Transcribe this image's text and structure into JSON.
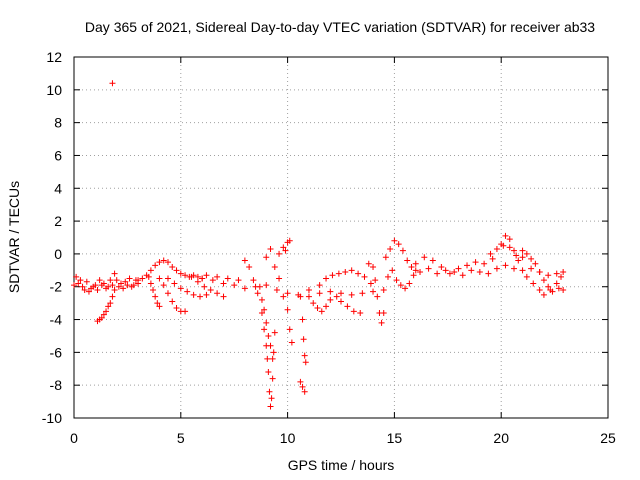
{
  "chart_data": {
    "type": "scatter",
    "title": "Day 365 of 2021, Sidereal Day-to-day VTEC variation (SDTVAR) for receiver ab33",
    "xlabel": "GPS time / hours",
    "ylabel": "SDTVAR / TECUs",
    "xlim": [
      0,
      25
    ],
    "ylim": [
      -10,
      12
    ],
    "xticks": [
      0,
      5,
      10,
      15,
      20,
      25
    ],
    "yticks": [
      -10,
      -8,
      -6,
      -4,
      -2,
      0,
      2,
      4,
      6,
      8,
      10,
      12
    ],
    "grid": true,
    "marker": "+",
    "color": "#ff0000",
    "series": [
      {
        "name": "SDTVAR",
        "points": [
          [
            1.8,
            10.4
          ],
          [
            0.0,
            -1.9
          ],
          [
            0.2,
            -1.8
          ],
          [
            0.4,
            -2.0
          ],
          [
            0.6,
            -1.7
          ],
          [
            0.8,
            -2.1
          ],
          [
            1.0,
            -1.9
          ],
          [
            1.2,
            -1.6
          ],
          [
            1.4,
            -1.8
          ],
          [
            1.6,
            -2.0
          ],
          [
            1.8,
            -1.9
          ],
          [
            2.0,
            -1.6
          ],
          [
            2.2,
            -1.8
          ],
          [
            2.4,
            -1.7
          ],
          [
            2.6,
            -1.5
          ],
          [
            2.8,
            -1.9
          ],
          [
            3.0,
            -1.8
          ],
          [
            0.1,
            -1.4
          ],
          [
            0.3,
            -1.6
          ],
          [
            0.5,
            -2.2
          ],
          [
            0.7,
            -2.3
          ],
          [
            0.9,
            -2.0
          ],
          [
            1.1,
            -2.2
          ],
          [
            1.3,
            -1.9
          ],
          [
            1.5,
            -2.1
          ],
          [
            1.7,
            -1.6
          ],
          [
            1.9,
            -1.2
          ],
          [
            2.1,
            -2.0
          ],
          [
            2.3,
            -2.1
          ],
          [
            2.5,
            -1.9
          ],
          [
            2.7,
            -2.0
          ],
          [
            2.9,
            -1.6
          ],
          [
            1.1,
            -4.1
          ],
          [
            1.2,
            -4.0
          ],
          [
            1.3,
            -3.9
          ],
          [
            1.4,
            -3.7
          ],
          [
            1.5,
            -3.5
          ],
          [
            1.6,
            -3.2
          ],
          [
            1.7,
            -3.0
          ],
          [
            1.8,
            -2.6
          ],
          [
            1.9,
            -2.2
          ],
          [
            3.0,
            -1.6
          ],
          [
            3.2,
            -1.5
          ],
          [
            3.4,
            -1.3
          ],
          [
            3.6,
            -1.0
          ],
          [
            3.8,
            -0.7
          ],
          [
            4.0,
            -0.5
          ],
          [
            4.2,
            -0.4
          ],
          [
            4.4,
            -0.5
          ],
          [
            4.6,
            -0.8
          ],
          [
            4.8,
            -1.0
          ],
          [
            5.0,
            -1.2
          ],
          [
            5.2,
            -1.3
          ],
          [
            5.4,
            -1.4
          ],
          [
            5.6,
            -1.3
          ],
          [
            5.8,
            -1.4
          ],
          [
            6.0,
            -1.5
          ],
          [
            3.5,
            -1.4
          ],
          [
            3.6,
            -1.8
          ],
          [
            3.7,
            -2.2
          ],
          [
            3.8,
            -2.6
          ],
          [
            3.9,
            -3.0
          ],
          [
            4.0,
            -3.2
          ],
          [
            4.0,
            -1.5
          ],
          [
            4.2,
            -1.9
          ],
          [
            4.4,
            -2.4
          ],
          [
            4.6,
            -2.9
          ],
          [
            4.8,
            -3.3
          ],
          [
            5.0,
            -3.5
          ],
          [
            5.2,
            -3.5
          ],
          [
            4.4,
            -1.5
          ],
          [
            4.7,
            -1.8
          ],
          [
            5.0,
            -2.1
          ],
          [
            5.3,
            -2.3
          ],
          [
            5.6,
            -2.5
          ],
          [
            5.9,
            -2.6
          ],
          [
            6.2,
            -2.5
          ],
          [
            5.5,
            -1.4
          ],
          [
            5.8,
            -1.7
          ],
          [
            6.1,
            -2.0
          ],
          [
            6.4,
            -2.2
          ],
          [
            6.7,
            -2.4
          ],
          [
            7.0,
            -2.6
          ],
          [
            6.0,
            -1.5
          ],
          [
            6.5,
            -1.6
          ],
          [
            7.0,
            -1.8
          ],
          [
            7.5,
            -1.9
          ],
          [
            8.0,
            -2.1
          ],
          [
            8.5,
            -2.0
          ],
          [
            9.0,
            -1.9
          ],
          [
            9.5,
            -2.2
          ],
          [
            10.0,
            -2.4
          ],
          [
            10.5,
            -2.5
          ],
          [
            11.0,
            -2.6
          ],
          [
            11.5,
            -2.4
          ],
          [
            12.0,
            -2.3
          ],
          [
            12.5,
            -2.4
          ],
          [
            13.0,
            -2.5
          ],
          [
            13.5,
            -2.4
          ],
          [
            14.0,
            -2.3
          ],
          [
            14.5,
            -2.2
          ],
          [
            6.2,
            -1.3
          ],
          [
            6.7,
            -1.4
          ],
          [
            7.2,
            -1.5
          ],
          [
            7.7,
            -1.6
          ],
          [
            8.0,
            -0.4
          ],
          [
            8.2,
            -0.8
          ],
          [
            8.4,
            -1.6
          ],
          [
            8.6,
            -2.4
          ],
          [
            8.8,
            -3.6
          ],
          [
            8.9,
            -4.6
          ],
          [
            9.0,
            -5.6
          ],
          [
            9.05,
            -6.4
          ],
          [
            9.1,
            -7.2
          ],
          [
            9.15,
            -8.4
          ],
          [
            9.2,
            -9.3
          ],
          [
            9.25,
            -8.8
          ],
          [
            9.3,
            -7.6
          ],
          [
            9.35,
            -6.0
          ],
          [
            9.4,
            -4.8
          ],
          [
            8.7,
            -2.0
          ],
          [
            8.8,
            -2.8
          ],
          [
            8.9,
            -3.4
          ],
          [
            9.0,
            -4.2
          ],
          [
            9.1,
            -5.0
          ],
          [
            9.2,
            -5.6
          ],
          [
            9.3,
            -6.4
          ],
          [
            9.0,
            -0.2
          ],
          [
            9.2,
            0.3
          ],
          [
            9.4,
            -0.8
          ],
          [
            9.6,
            -1.5
          ],
          [
            9.8,
            -2.6
          ],
          [
            10.0,
            -3.4
          ],
          [
            10.1,
            -4.6
          ],
          [
            10.2,
            -5.4
          ],
          [
            9.6,
            0.0
          ],
          [
            9.8,
            0.4
          ],
          [
            10.0,
            0.7
          ],
          [
            10.1,
            0.8
          ],
          [
            9.9,
            0.2
          ],
          [
            10.6,
            -2.6
          ],
          [
            10.7,
            -4.0
          ],
          [
            10.75,
            -5.2
          ],
          [
            10.8,
            -6.2
          ],
          [
            10.85,
            -6.6
          ],
          [
            10.6,
            -7.8
          ],
          [
            10.7,
            -8.1
          ],
          [
            10.8,
            -8.4
          ],
          [
            11.0,
            -2.2
          ],
          [
            11.2,
            -3.0
          ],
          [
            11.4,
            -3.3
          ],
          [
            11.6,
            -3.5
          ],
          [
            11.8,
            -3.2
          ],
          [
            12.0,
            -2.8
          ],
          [
            12.3,
            -2.6
          ],
          [
            11.5,
            -1.9
          ],
          [
            11.8,
            -1.5
          ],
          [
            12.1,
            -1.3
          ],
          [
            12.4,
            -1.2
          ],
          [
            12.7,
            -1.1
          ],
          [
            13.0,
            -1.0
          ],
          [
            13.3,
            -1.2
          ],
          [
            13.6,
            -1.4
          ],
          [
            13.9,
            -1.8
          ],
          [
            12.5,
            -2.9
          ],
          [
            12.8,
            -3.2
          ],
          [
            13.1,
            -3.5
          ],
          [
            13.4,
            -3.6
          ],
          [
            13.8,
            -0.6
          ],
          [
            14.0,
            -0.8
          ],
          [
            14.1,
            -1.6
          ],
          [
            14.2,
            -2.6
          ],
          [
            14.3,
            -3.6
          ],
          [
            14.4,
            -4.2
          ],
          [
            14.5,
            -3.6
          ],
          [
            14.6,
            -0.2
          ],
          [
            14.8,
            0.3
          ],
          [
            15.0,
            0.8
          ],
          [
            15.2,
            0.6
          ],
          [
            15.4,
            0.2
          ],
          [
            15.6,
            -0.4
          ],
          [
            15.8,
            -0.8
          ],
          [
            16.0,
            -1.0
          ],
          [
            14.7,
            -1.4
          ],
          [
            14.9,
            -1.0
          ],
          [
            15.1,
            -1.6
          ],
          [
            15.3,
            -1.9
          ],
          [
            15.5,
            -2.1
          ],
          [
            15.7,
            -1.8
          ],
          [
            15.9,
            -1.3
          ],
          [
            16.0,
            -0.6
          ],
          [
            16.4,
            -0.2
          ],
          [
            16.8,
            -0.4
          ],
          [
            17.2,
            -0.8
          ],
          [
            17.6,
            -1.2
          ],
          [
            18.0,
            -0.9
          ],
          [
            18.4,
            -0.7
          ],
          [
            18.8,
            -0.5
          ],
          [
            19.2,
            -0.6
          ],
          [
            19.6,
            -0.3
          ],
          [
            20.0,
            0.6
          ],
          [
            20.2,
            1.1
          ],
          [
            20.4,
            0.9
          ],
          [
            20.6,
            0.2
          ],
          [
            20.8,
            -0.4
          ],
          [
            21.0,
            -0.2
          ],
          [
            16.2,
            -1.1
          ],
          [
            16.6,
            -0.9
          ],
          [
            17.0,
            -1.2
          ],
          [
            17.4,
            -1.0
          ],
          [
            17.8,
            -1.1
          ],
          [
            18.2,
            -1.3
          ],
          [
            18.6,
            -1.0
          ],
          [
            19.0,
            -1.1
          ],
          [
            19.4,
            -1.2
          ],
          [
            19.8,
            -0.9
          ],
          [
            20.2,
            -0.7
          ],
          [
            20.6,
            -0.9
          ],
          [
            21.0,
            -1.0
          ],
          [
            21.4,
            -0.9
          ],
          [
            21.8,
            -1.1
          ],
          [
            22.2,
            -1.3
          ],
          [
            22.6,
            -1.2
          ],
          [
            22.9,
            -1.1
          ],
          [
            19.5,
            0.0
          ],
          [
            19.8,
            0.3
          ],
          [
            20.1,
            0.5
          ],
          [
            20.4,
            0.4
          ],
          [
            20.7,
            -0.1
          ],
          [
            21.0,
            0.2
          ],
          [
            21.2,
            0.0
          ],
          [
            21.4,
            -0.3
          ],
          [
            21.6,
            -0.6
          ],
          [
            21.8,
            -1.1
          ],
          [
            22.0,
            -1.6
          ],
          [
            22.2,
            -2.0
          ],
          [
            22.4,
            -2.3
          ],
          [
            22.7,
            -2.1
          ],
          [
            22.9,
            -2.2
          ],
          [
            21.2,
            -1.4
          ],
          [
            21.5,
            -1.8
          ],
          [
            21.8,
            -2.2
          ],
          [
            22.0,
            -2.5
          ],
          [
            22.3,
            -2.2
          ],
          [
            22.6,
            -1.8
          ],
          [
            22.8,
            -1.4
          ]
        ]
      }
    ]
  }
}
